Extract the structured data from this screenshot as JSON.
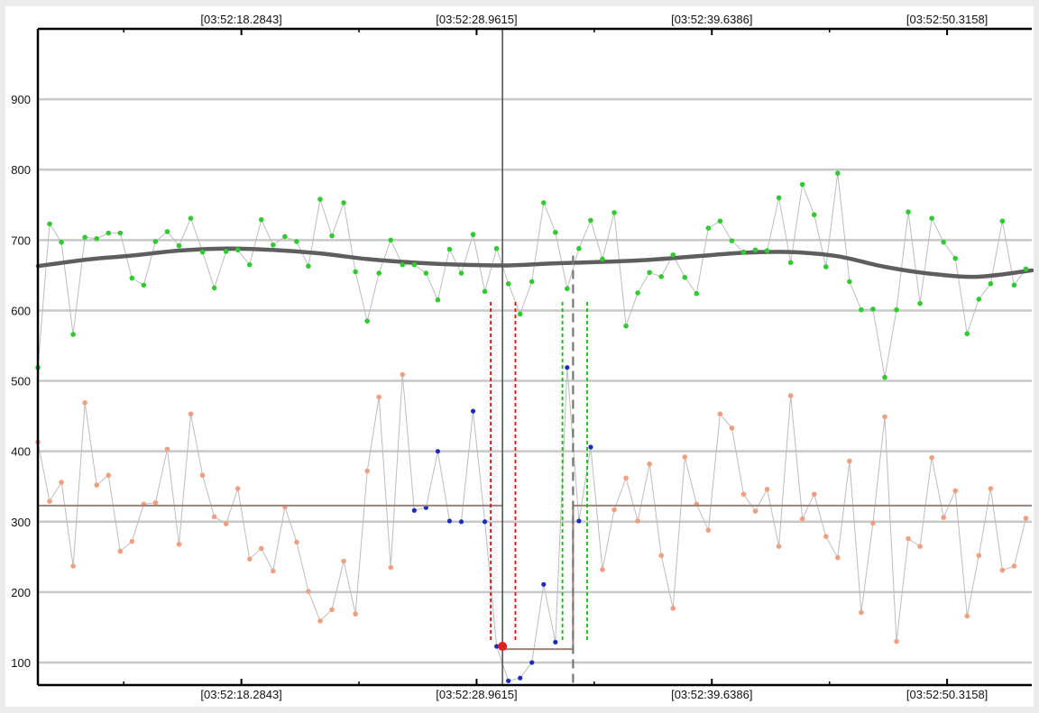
{
  "chart_data": {
    "type": "scatter",
    "title": "",
    "xlabel": "",
    "ylabel": "",
    "ylim": [
      68,
      1000
    ],
    "xlim": [
      0,
      84.5
    ],
    "grid": true,
    "y_ticks": [
      100,
      200,
      300,
      400,
      500,
      600,
      700,
      800,
      900
    ],
    "x_tick_labels": [
      {
        "x": 17.3,
        "label": "[03:52:18.2843]"
      },
      {
        "x": 37.3,
        "label": "[03:52:28.9615]"
      },
      {
        "x": 57.3,
        "label": "[03:52:39.6386]"
      },
      {
        "x": 77.3,
        "label": "[03:52:50.3158]"
      }
    ],
    "minor_x_ticks": [
      7.3,
      27.3,
      47.3,
      67.3
    ],
    "colors": {
      "upper_points": "#2ecc2e",
      "lower_points": "#f0a080",
      "segment_points": "#1a2dbf",
      "trend_line": "#5e5e5e",
      "connector": "#bdbdbd",
      "level_line": "#a08078",
      "red_guides": "#e01010",
      "green_guides": "#10c010",
      "cursor": "#555555",
      "marker": "#e02020"
    },
    "series": [
      {
        "role": "upper",
        "x": [
          0,
          1,
          2,
          3,
          4,
          5,
          6,
          7,
          8,
          9,
          10,
          11,
          12,
          13,
          14,
          15,
          16,
          17,
          18,
          19,
          20,
          21,
          22,
          23,
          24,
          25,
          26,
          27,
          28,
          29,
          30,
          31,
          32,
          33,
          34,
          35,
          36,
          37,
          38,
          39,
          40,
          41,
          42,
          43,
          44,
          45,
          46,
          47,
          48,
          49,
          50,
          51,
          52,
          53,
          54,
          55,
          56,
          57,
          58,
          59,
          60,
          61,
          62,
          63,
          64,
          65,
          66,
          67,
          68,
          69,
          70,
          71,
          72,
          73,
          74,
          75,
          76,
          77,
          78,
          79,
          80,
          81,
          82,
          83,
          84
        ],
        "y": [
          519,
          723,
          697,
          566,
          704,
          702,
          710,
          710,
          646,
          636,
          698,
          712,
          692,
          731,
          683,
          632,
          684,
          686,
          665,
          729,
          693,
          705,
          698,
          663,
          758,
          706,
          753,
          655,
          585,
          653,
          700,
          665,
          665,
          653,
          615,
          687,
          653,
          708,
          627,
          688,
          638,
          595,
          641,
          753,
          711,
          631,
          688,
          728,
          673,
          739,
          578,
          625,
          654,
          648,
          679,
          647,
          624,
          717,
          727,
          699,
          683,
          686,
          685,
          760,
          668,
          779,
          736,
          662,
          795,
          641,
          601,
          602,
          505,
          601,
          740,
          610,
          731,
          697,
          674,
          567,
          616,
          638,
          727,
          636,
          659
        ]
      },
      {
        "role": "lower",
        "x": [
          0,
          1,
          2,
          3,
          4,
          5,
          6,
          7,
          8,
          9,
          10,
          11,
          12,
          13,
          14,
          15,
          16,
          17,
          18,
          19,
          20,
          21,
          22,
          23,
          24,
          25,
          26,
          27,
          28,
          29,
          30,
          31,
          32,
          33,
          34,
          35,
          36,
          37,
          38,
          39,
          40,
          41,
          42,
          43,
          44,
          45,
          46,
          47,
          48,
          49,
          50,
          51,
          52,
          53,
          54,
          55,
          56,
          57,
          58,
          59,
          60,
          61,
          62,
          63,
          64,
          65,
          66,
          67,
          68,
          69,
          70,
          71,
          72,
          73,
          74,
          75,
          76,
          77,
          78,
          79,
          80,
          81,
          82,
          83,
          84
        ],
        "y": [
          413,
          329,
          356,
          237,
          469,
          352,
          366,
          258,
          272,
          325,
          327,
          403,
          268,
          453,
          366,
          307,
          297,
          347,
          247,
          262,
          230,
          321,
          271,
          201,
          159,
          175,
          244,
          169,
          372,
          477,
          235,
          509,
          316,
          320,
          400,
          301,
          300,
          457,
          300,
          123,
          74,
          78,
          100,
          211,
          129,
          519,
          301,
          406,
          232,
          317,
          362,
          301,
          382,
          252,
          177,
          392,
          325,
          288,
          453,
          433,
          339,
          315,
          346,
          265,
          479,
          304,
          339,
          279,
          249,
          386,
          171,
          298,
          449,
          130,
          276,
          265,
          391,
          306,
          344,
          166,
          252,
          347,
          231,
          237,
          305
        ],
        "highlight_x_range": [
          32,
          47
        ]
      },
      {
        "role": "trend",
        "x": [
          0,
          4,
          8,
          12,
          16,
          20,
          24,
          28,
          32,
          36,
          40,
          44,
          48,
          52,
          56,
          60,
          64,
          68,
          72,
          76,
          80,
          84.5
        ],
        "y": [
          663,
          672,
          678,
          685,
          688,
          686,
          681,
          673,
          668,
          665,
          664,
          667,
          669,
          672,
          677,
          682,
          683,
          677,
          662,
          652,
          648,
          657
        ]
      }
    ],
    "annotations": {
      "cursor_x": 39.5,
      "marker": {
        "x": 39.5,
        "y": 123
      },
      "level_value": 323,
      "gap_level_value": 119,
      "gap_x_range": [
        39.5,
        45.5
      ],
      "dashed_cursor_x": 45.5,
      "dashed_cursor_y_range": [
        68,
        678
      ],
      "red_guides_x": [
        38.5,
        40.6
      ],
      "green_guides_x": [
        44.6,
        46.7
      ],
      "guides_y_range": [
        132,
        615
      ]
    }
  }
}
